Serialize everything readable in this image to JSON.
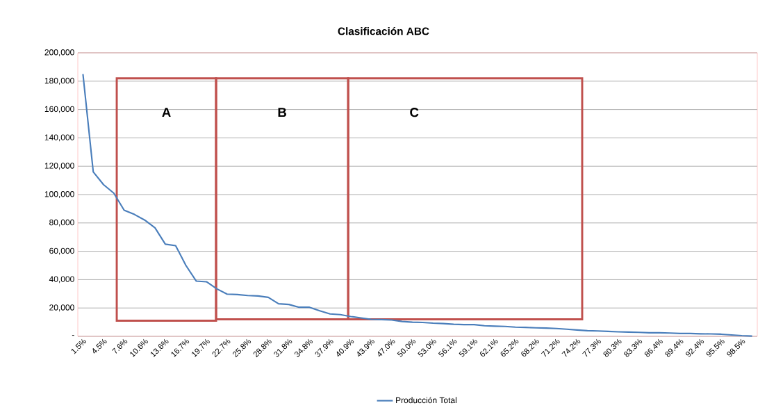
{
  "chart_data": {
    "type": "line",
    "title": "Clasificación ABC",
    "categories": [
      "1.5%",
      null,
      "4.5%",
      null,
      "7.6%",
      null,
      "10.6%",
      null,
      "13.6%",
      null,
      "16.7%",
      null,
      "19.7%",
      null,
      "22.7%",
      null,
      "25.8%",
      null,
      "28.8%",
      null,
      "31.8%",
      null,
      "34.8%",
      null,
      "37.9%",
      null,
      "40.9%",
      null,
      "43.9%",
      null,
      "47.0%",
      null,
      "50.0%",
      null,
      "53.0%",
      null,
      "56.1%",
      null,
      "59.1%",
      null,
      "62.1%",
      null,
      "65.2%",
      null,
      "68.2%",
      null,
      "71.2%",
      null,
      "74.2%",
      null,
      "77.3%",
      null,
      "80.3%",
      null,
      "83.3%",
      null,
      "86.4%",
      null,
      "89.4%",
      null,
      "92.4%",
      null,
      "95.5%",
      null,
      "98.5%",
      null
    ],
    "series": [
      {
        "name": "Producción Total",
        "color": "#4a7ebb",
        "values": [
          185000,
          116000,
          107000,
          101000,
          89000,
          86000,
          82000,
          76500,
          65000,
          64000,
          50000,
          39000,
          38500,
          33500,
          29800,
          29500,
          28800,
          28500,
          27500,
          23000,
          22500,
          20500,
          20500,
          18000,
          15800,
          15300,
          14000,
          13000,
          12000,
          11800,
          11500,
          10500,
          10000,
          9800,
          9300,
          9000,
          8500,
          8300,
          8300,
          7500,
          7200,
          7000,
          6500,
          6300,
          6000,
          5800,
          5500,
          5000,
          4500,
          4000,
          3800,
          3500,
          3200,
          3000,
          2800,
          2500,
          2500,
          2300,
          2000,
          2000,
          1800,
          1700,
          1500,
          1000,
          500,
          200
        ]
      }
    ],
    "ylim": [
      0,
      200000
    ],
    "yticks": [
      {
        "value": 0,
        "label": "-"
      },
      {
        "value": 20000,
        "label": "20,000"
      },
      {
        "value": 40000,
        "label": "40,000"
      },
      {
        "value": 60000,
        "label": "60,000"
      },
      {
        "value": 80000,
        "label": "80,000"
      },
      {
        "value": 100000,
        "label": "100,000"
      },
      {
        "value": 120000,
        "label": "120,000"
      },
      {
        "value": 140000,
        "label": "140,000"
      },
      {
        "value": 160000,
        "label": "160,000"
      },
      {
        "value": 180000,
        "label": "180,000"
      },
      {
        "value": 200000,
        "label": "200,000"
      }
    ],
    "annotations": [
      "A",
      "B",
      "C"
    ],
    "grid": "y",
    "legend": "bottom",
    "marker": "none",
    "line_style": "solid"
  }
}
